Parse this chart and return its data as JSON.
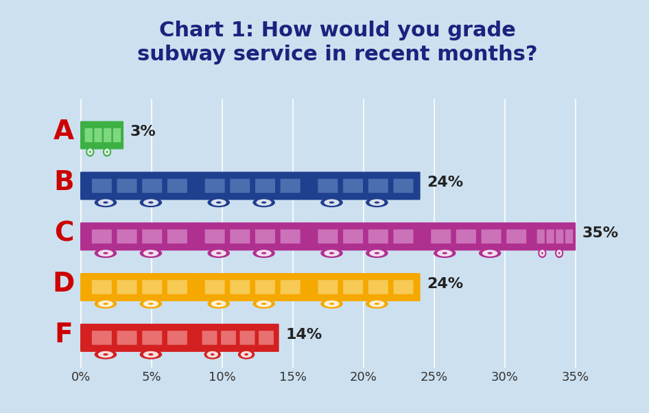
{
  "title": "Chart 1: How would you grade\nsubway service in recent months?",
  "categories": [
    "A",
    "B",
    "C",
    "D",
    "F"
  ],
  "values": [
    3,
    24,
    35,
    24,
    14
  ],
  "bar_colors": [
    "#3cb043",
    "#1f3f8f",
    "#b03090",
    "#f5a800",
    "#d42020"
  ],
  "window_colors": [
    "#7dd87f",
    "#4a6faf",
    "#cc72b8",
    "#f7c955",
    "#e87070"
  ],
  "label_colors": [
    "#cc0000",
    "#cc0000",
    "#cc0000",
    "#cc0000",
    "#cc0000"
  ],
  "title_color": "#1a237e",
  "background_color": "#cde0ef",
  "xlim": [
    0,
    37
  ],
  "xticks": [
    0,
    5,
    10,
    15,
    20,
    25,
    30,
    35
  ],
  "xtick_labels": [
    "0%",
    "5%",
    "10%",
    "15%",
    "20%",
    "25%",
    "30%",
    "35%"
  ],
  "title_fontsize": 22,
  "label_fontsize": 28,
  "value_fontsize": 16,
  "tick_fontsize": 13
}
